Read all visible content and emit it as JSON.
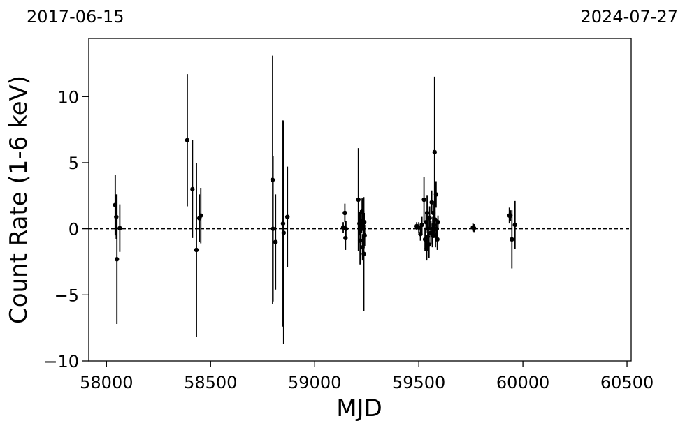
{
  "chart_data": {
    "type": "scatter",
    "title": "",
    "xlabel": "MJD",
    "ylabel": "Count Rate (1-6 keV)",
    "top_left_label": "2017-06-15",
    "top_right_label": "2024-07-27",
    "xlim": [
      57915,
      60520
    ],
    "ylim": [
      -10,
      14.4
    ],
    "xticks": [
      58000,
      58500,
      59000,
      59500,
      60000,
      60500
    ],
    "yticks": [
      -10,
      -5,
      0,
      5,
      10
    ],
    "ytick_labels": [
      "−10",
      "−5",
      "0",
      "5",
      "10"
    ],
    "reference_line": {
      "y": 0,
      "style": "dashed"
    },
    "grid": false,
    "marker_color": "#000000",
    "points": [
      {
        "x": 58042,
        "y": 1.8,
        "err": 2.3
      },
      {
        "x": 58047,
        "y": 0.9,
        "err": 1.7
      },
      {
        "x": 58050,
        "y": -2.3,
        "err": 4.9
      },
      {
        "x": 58064,
        "y": 0.05,
        "err": 1.8
      },
      {
        "x": 58388,
        "y": 6.7,
        "err": 5.0
      },
      {
        "x": 58413,
        "y": 3.0,
        "err": 3.7
      },
      {
        "x": 58432,
        "y": -1.6,
        "err": 6.6
      },
      {
        "x": 58446,
        "y": 0.8,
        "err": 1.8
      },
      {
        "x": 58453,
        "y": 1.0,
        "err": 2.1
      },
      {
        "x": 58798,
        "y": 3.7,
        "err": 9.4
      },
      {
        "x": 58800,
        "y": 0.0,
        "err": 5.5
      },
      {
        "x": 58812,
        "y": -1.0,
        "err": 3.6
      },
      {
        "x": 58848,
        "y": 0.4,
        "err": 7.8
      },
      {
        "x": 58851,
        "y": -0.3,
        "err": 8.4
      },
      {
        "x": 58869,
        "y": 0.9,
        "err": 3.8
      },
      {
        "x": 59137,
        "y": 0.1,
        "err": 0.4
      },
      {
        "x": 59145,
        "y": 1.2,
        "err": 0.7
      },
      {
        "x": 59148,
        "y": -0.7,
        "err": 0.9
      },
      {
        "x": 59150,
        "y": 0.0,
        "err": 0.6
      },
      {
        "x": 59210,
        "y": 2.2,
        "err": 3.9
      },
      {
        "x": 59215,
        "y": 0.4,
        "err": 0.9
      },
      {
        "x": 59218,
        "y": -0.9,
        "err": 1.8
      },
      {
        "x": 59220,
        "y": 0.6,
        "err": 0.8
      },
      {
        "x": 59222,
        "y": 0.0,
        "err": 1.2
      },
      {
        "x": 59225,
        "y": 0.2,
        "err": 0.5
      },
      {
        "x": 59228,
        "y": 1.3,
        "err": 1.0
      },
      {
        "x": 59230,
        "y": -1.4,
        "err": 1.0
      },
      {
        "x": 59233,
        "y": 0.0,
        "err": 0.7
      },
      {
        "x": 59236,
        "y": -1.9,
        "err": 4.3
      },
      {
        "x": 59238,
        "y": 0.5,
        "err": 0.7
      },
      {
        "x": 59240,
        "y": -0.5,
        "err": 0.8
      },
      {
        "x": 59490,
        "y": 0.2,
        "err": 0.3
      },
      {
        "x": 59500,
        "y": 0.1,
        "err": 0.4
      },
      {
        "x": 59508,
        "y": -0.4,
        "err": 0.5
      },
      {
        "x": 59515,
        "y": 0.3,
        "err": 0.6
      },
      {
        "x": 59525,
        "y": 2.2,
        "err": 1.7
      },
      {
        "x": 59530,
        "y": -0.8,
        "err": 0.9
      },
      {
        "x": 59535,
        "y": 0.5,
        "err": 0.8
      },
      {
        "x": 59538,
        "y": -1.5,
        "err": 0.9
      },
      {
        "x": 59540,
        "y": 1.2,
        "err": 1.3
      },
      {
        "x": 59543,
        "y": -0.6,
        "err": 1.0
      },
      {
        "x": 59546,
        "y": 0.0,
        "err": 1.0
      },
      {
        "x": 59549,
        "y": -1.2,
        "err": 1.0
      },
      {
        "x": 59552,
        "y": 0.8,
        "err": 0.9
      },
      {
        "x": 59558,
        "y": -0.3,
        "err": 0.9
      },
      {
        "x": 59562,
        "y": 2.0,
        "err": 0.9
      },
      {
        "x": 59565,
        "y": -0.5,
        "err": 0.9
      },
      {
        "x": 59567,
        "y": 0.0,
        "err": 0.9
      },
      {
        "x": 59570,
        "y": 1.2,
        "err": 0.9
      },
      {
        "x": 59573,
        "y": 0.3,
        "err": 1.0
      },
      {
        "x": 59576,
        "y": 5.8,
        "err": 5.7
      },
      {
        "x": 59578,
        "y": 0.7,
        "err": 1.0
      },
      {
        "x": 59580,
        "y": -0.5,
        "err": 0.9
      },
      {
        "x": 59583,
        "y": 2.6,
        "err": 1.0
      },
      {
        "x": 59586,
        "y": 0.0,
        "err": 0.7
      },
      {
        "x": 59589,
        "y": -0.8,
        "err": 0.8
      },
      {
        "x": 59592,
        "y": 0.5,
        "err": 0.5
      },
      {
        "x": 59760,
        "y": 0.1,
        "err": 0.3
      },
      {
        "x": 59765,
        "y": 0.05,
        "err": 0.3
      },
      {
        "x": 59935,
        "y": 1.0,
        "err": 0.6
      },
      {
        "x": 59940,
        "y": 1.0,
        "err": 0.4
      },
      {
        "x": 59947,
        "y": -0.8,
        "err": 2.2
      },
      {
        "x": 59962,
        "y": 0.3,
        "err": 1.8
      }
    ]
  }
}
